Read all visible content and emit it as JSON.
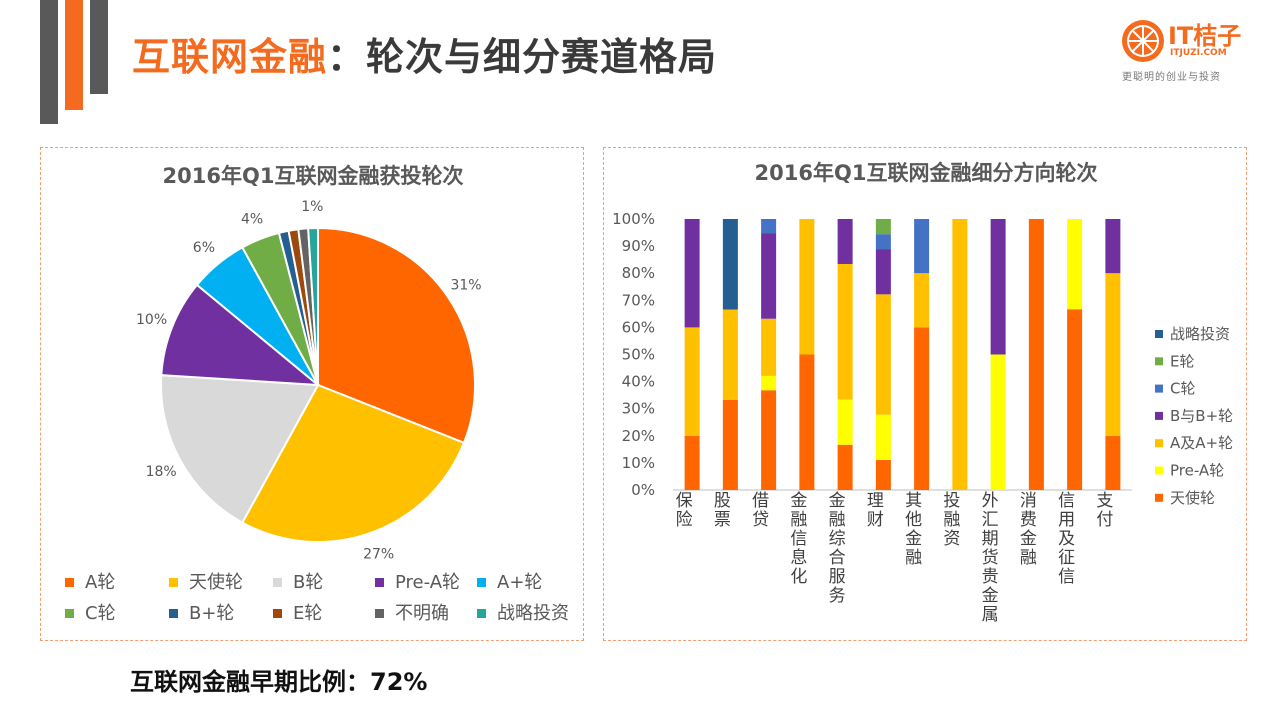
{
  "header": {
    "title_accent": "互联网金融",
    "title_rest": "：轮次与细分赛道格局"
  },
  "logo": {
    "brand": "IT桔子",
    "url": "ITJUZI.COM",
    "slogan": "更聪明的创业与投资"
  },
  "colors": {
    "accent": "#f46b1f",
    "deco_gray": "#595959"
  },
  "footer": {
    "note": "互联网金融早期比例：72%"
  },
  "chart_data": [
    {
      "type": "pie",
      "title": "2016年Q1互联网金融获投轮次",
      "categories": [
        "A轮",
        "天使轮",
        "B轮",
        "Pre-A轮",
        "A+轮",
        "C轮",
        "B+轮",
        "E轮",
        "不明确",
        "战略投资"
      ],
      "values": [
        31,
        27,
        18,
        10,
        6,
        4,
        1,
        1,
        1,
        1
      ],
      "data_labels": [
        "31%",
        "27%",
        "18%",
        "10%",
        "6%",
        "4%",
        "",
        "",
        "",
        "1%"
      ],
      "colors": [
        "#ff6600",
        "#ffc000",
        "#d9d9d9",
        "#7030a0",
        "#00b0f0",
        "#70ad47",
        "#255e91",
        "#9e480e",
        "#636363",
        "#26a69a"
      ],
      "legend_position": "bottom"
    },
    {
      "type": "bar",
      "stacked": true,
      "title": "2016年Q1互联网金融细分方向轮次",
      "categories": [
        "保险",
        "股票",
        "借贷",
        "金融信息化",
        "金融综合服务",
        "理财",
        "其他金融",
        "投融资",
        "外汇期货贵金属",
        "消费金融",
        "信用及征信",
        "支付"
      ],
      "yticks": [
        "0%",
        "10%",
        "20%",
        "30%",
        "40%",
        "50%",
        "60%",
        "70%",
        "80%",
        "90%",
        "100%"
      ],
      "ylim": [
        0,
        100
      ],
      "legend_position": "right",
      "series": [
        {
          "name": "天使轮",
          "color": "#ff6600",
          "values": [
            20,
            33.3,
            36.8,
            50,
            16.7,
            11.1,
            60,
            0,
            0,
            100,
            66.7,
            20
          ]
        },
        {
          "name": "Pre-A轮",
          "color": "#ffff00",
          "values": [
            0,
            0,
            5.3,
            0,
            16.7,
            16.7,
            0,
            0,
            50,
            0,
            33.3,
            0
          ]
        },
        {
          "name": "A及A+轮",
          "color": "#ffc000",
          "values": [
            40,
            33.3,
            21.1,
            50,
            50,
            44.4,
            20,
            100,
            0,
            0,
            0,
            60
          ]
        },
        {
          "name": "B与B+轮",
          "color": "#7030a0",
          "values": [
            40,
            0,
            31.6,
            0,
            16.6,
            16.7,
            0,
            0,
            50,
            0,
            0,
            20
          ]
        },
        {
          "name": "C轮",
          "color": "#4472c4",
          "values": [
            0,
            0,
            5.2,
            0,
            0,
            5.5,
            20,
            0,
            0,
            0,
            0,
            0
          ]
        },
        {
          "name": "E轮",
          "color": "#70ad47",
          "values": [
            0,
            0,
            0,
            0,
            0,
            5.6,
            0,
            0,
            0,
            0,
            0,
            0
          ]
        },
        {
          "name": "战略投资",
          "color": "#255e91",
          "values": [
            0,
            33.4,
            0,
            0,
            0,
            0,
            0,
            0,
            0,
            0,
            0,
            0
          ]
        }
      ],
      "legend_order": [
        "战略投资",
        "E轮",
        "C轮",
        "B与B+轮",
        "A及A+轮",
        "Pre-A轮",
        "天使轮"
      ]
    }
  ]
}
